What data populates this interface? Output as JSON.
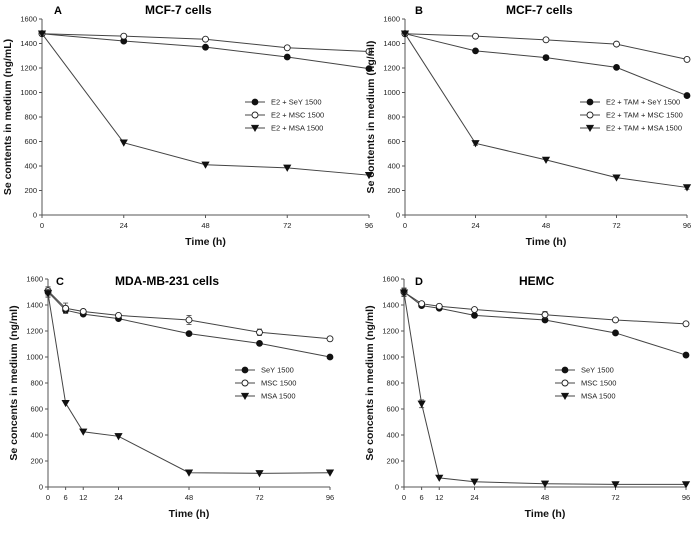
{
  "chart_data": [
    {
      "type": "line",
      "letter": "A",
      "title": "MCF-7 cells",
      "xlabel": "Time (h)",
      "ylabel": "Se contents in medium (ng/mL)",
      "xticks": [
        0,
        24,
        48,
        72,
        96
      ],
      "xlim": [
        0,
        96
      ],
      "yticks": [
        0,
        200,
        400,
        600,
        800,
        1000,
        1200,
        1400,
        1600
      ],
      "ylim": [
        0,
        1600
      ],
      "legend_position": "right-middle",
      "series": [
        {
          "name": "E2 + SeY 1500",
          "marker": "circle-filled",
          "x": [
            0,
            24,
            48,
            72,
            96
          ],
          "y": [
            1480,
            1420,
            1370,
            1290,
            1195
          ],
          "err": [
            0,
            0,
            0,
            0,
            0
          ]
        },
        {
          "name": "E2 + MSC 1500",
          "marker": "circle-open",
          "x": [
            0,
            24,
            48,
            72,
            96
          ],
          "y": [
            1480,
            1460,
            1435,
            1365,
            1335
          ],
          "err": [
            0,
            0,
            0,
            0,
            0
          ]
        },
        {
          "name": "E2 + MSA 1500",
          "marker": "triangle-down",
          "x": [
            0,
            24,
            48,
            72,
            96
          ],
          "y": [
            1480,
            590,
            410,
            385,
            325
          ],
          "err": [
            0,
            0,
            0,
            0,
            0
          ]
        }
      ]
    },
    {
      "type": "line",
      "letter": "B",
      "title": "MCF-7 cells",
      "xlabel": "Time (h)",
      "ylabel": "Se contents in medium (ng/ml)",
      "xticks": [
        0,
        24,
        48,
        72,
        96
      ],
      "xlim": [
        0,
        96
      ],
      "yticks": [
        0,
        200,
        400,
        600,
        800,
        1000,
        1200,
        1400,
        1600
      ],
      "ylim": [
        0,
        1600
      ],
      "legend_position": "right-middle",
      "series": [
        {
          "name": "E2 + TAM + SeY 1500",
          "marker": "circle-filled",
          "x": [
            0,
            24,
            48,
            72,
            96
          ],
          "y": [
            1480,
            1340,
            1285,
            1205,
            975
          ],
          "err": [
            0,
            0,
            0,
            0,
            0
          ]
        },
        {
          "name": "E2 + TAM + MSC 1500",
          "marker": "circle-open",
          "x": [
            0,
            24,
            48,
            72,
            96
          ],
          "y": [
            1480,
            1460,
            1430,
            1395,
            1270
          ],
          "err": [
            0,
            0,
            0,
            0,
            0
          ]
        },
        {
          "name": "E2 + TAM + MSA 1500",
          "marker": "triangle-down",
          "x": [
            0,
            24,
            48,
            72,
            96
          ],
          "y": [
            1480,
            585,
            450,
            305,
            225
          ],
          "err": [
            0,
            15,
            0,
            0,
            15
          ]
        }
      ]
    },
    {
      "type": "line",
      "letter": "C",
      "title": "MDA-MB-231 cells",
      "xlabel": "Time (h)",
      "ylabel": "Se concents in medium (ng/ml)",
      "xticks": [
        0,
        6,
        12,
        24,
        48,
        72,
        96
      ],
      "xlim": [
        0,
        96
      ],
      "yticks": [
        0,
        200,
        400,
        600,
        800,
        1000,
        1200,
        1400,
        1600
      ],
      "ylim": [
        0,
        1600
      ],
      "legend_position": "right-middle",
      "series": [
        {
          "name": "SeY 1500",
          "marker": "circle-filled",
          "x": [
            0,
            6,
            12,
            24,
            48,
            72,
            96
          ],
          "y": [
            1500,
            1360,
            1330,
            1295,
            1180,
            1105,
            1000
          ],
          "err": [
            30,
            20,
            0,
            0,
            0,
            0,
            0
          ]
        },
        {
          "name": "MSC 1500",
          "marker": "circle-open",
          "x": [
            0,
            6,
            12,
            24,
            48,
            72,
            96
          ],
          "y": [
            1510,
            1375,
            1350,
            1320,
            1285,
            1190,
            1140
          ],
          "err": [
            30,
            40,
            0,
            0,
            35,
            25,
            0
          ]
        },
        {
          "name": "MSA 1500",
          "marker": "triangle-down",
          "x": [
            0,
            6,
            12,
            24,
            48,
            72,
            96
          ],
          "y": [
            1490,
            645,
            425,
            390,
            110,
            105,
            110
          ],
          "err": [
            30,
            0,
            0,
            0,
            0,
            0,
            0
          ]
        }
      ]
    },
    {
      "type": "line",
      "letter": "D",
      "title": "HEMC",
      "xlabel": "Time (h)",
      "ylabel": "Se concents in medium (ng/ml)",
      "xticks": [
        0,
        6,
        12,
        24,
        48,
        72,
        96
      ],
      "xlim": [
        0,
        96
      ],
      "yticks": [
        0,
        200,
        400,
        600,
        800,
        1000,
        1200,
        1400,
        1600
      ],
      "ylim": [
        0,
        1600
      ],
      "legend_position": "right-middle",
      "series": [
        {
          "name": "SeY 1500",
          "marker": "circle-filled",
          "x": [
            0,
            6,
            12,
            24,
            48,
            72,
            96
          ],
          "y": [
            1500,
            1395,
            1375,
            1320,
            1285,
            1185,
            1015
          ],
          "err": [
            30,
            0,
            0,
            0,
            0,
            0,
            0
          ]
        },
        {
          "name": "MSC 1500",
          "marker": "circle-open",
          "x": [
            0,
            6,
            12,
            24,
            48,
            72,
            96
          ],
          "y": [
            1500,
            1410,
            1390,
            1365,
            1325,
            1285,
            1255
          ],
          "err": [
            30,
            0,
            0,
            0,
            25,
            0,
            0
          ]
        },
        {
          "name": "MSA 1500",
          "marker": "triangle-down",
          "x": [
            0,
            6,
            12,
            24,
            48,
            72,
            96
          ],
          "y": [
            1495,
            640,
            70,
            40,
            25,
            20,
            20
          ],
          "err": [
            30,
            30,
            0,
            0,
            0,
            0,
            0
          ]
        }
      ]
    }
  ]
}
